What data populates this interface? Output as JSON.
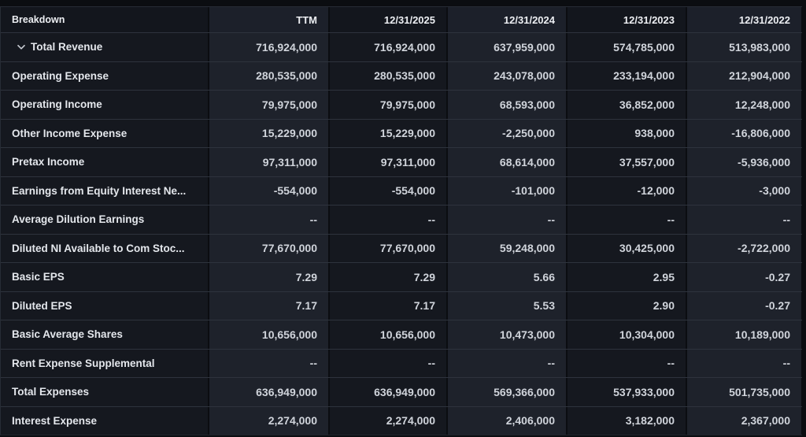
{
  "theme": {
    "page_bg": "#0b0d11",
    "column_dark_bg": "#15181f",
    "column_light_bg": "#1e222b",
    "row_separator": "#2e333d",
    "column_divider": "#0b0d11",
    "header_text": "#eceef2",
    "label_text": "#e4e7ec",
    "value_text": "#d0d4db"
  },
  "table": {
    "columns": [
      "Breakdown",
      "TTM",
      "12/31/2025",
      "12/31/2024",
      "12/31/2023",
      "12/31/2022"
    ],
    "rows": [
      {
        "label": "Total Revenue",
        "expandable": true,
        "values": [
          "716,924,000",
          "716,924,000",
          "637,959,000",
          "574,785,000",
          "513,983,000"
        ]
      },
      {
        "label": "Operating Expense",
        "expandable": false,
        "values": [
          "280,535,000",
          "280,535,000",
          "243,078,000",
          "233,194,000",
          "212,904,000"
        ]
      },
      {
        "label": "Operating Income",
        "expandable": false,
        "values": [
          "79,975,000",
          "79,975,000",
          "68,593,000",
          "36,852,000",
          "12,248,000"
        ]
      },
      {
        "label": "Other Income Expense",
        "expandable": false,
        "values": [
          "15,229,000",
          "15,229,000",
          "-2,250,000",
          "938,000",
          "-16,806,000"
        ]
      },
      {
        "label": "Pretax Income",
        "expandable": false,
        "values": [
          "97,311,000",
          "97,311,000",
          "68,614,000",
          "37,557,000",
          "-5,936,000"
        ]
      },
      {
        "label": "Earnings from Equity Interest Ne...",
        "expandable": false,
        "values": [
          "-554,000",
          "-554,000",
          "-101,000",
          "-12,000",
          "-3,000"
        ]
      },
      {
        "label": "Average Dilution Earnings",
        "expandable": false,
        "values": [
          "--",
          "--",
          "--",
          "--",
          "--"
        ]
      },
      {
        "label": "Diluted NI Available to Com Stoc...",
        "expandable": false,
        "values": [
          "77,670,000",
          "77,670,000",
          "59,248,000",
          "30,425,000",
          "-2,722,000"
        ]
      },
      {
        "label": "Basic EPS",
        "expandable": false,
        "values": [
          "7.29",
          "7.29",
          "5.66",
          "2.95",
          "-0.27"
        ]
      },
      {
        "label": "Diluted EPS",
        "expandable": false,
        "values": [
          "7.17",
          "7.17",
          "5.53",
          "2.90",
          "-0.27"
        ]
      },
      {
        "label": "Basic Average Shares",
        "expandable": false,
        "values": [
          "10,656,000",
          "10,656,000",
          "10,473,000",
          "10,304,000",
          "10,189,000"
        ]
      },
      {
        "label": "Rent Expense Supplemental",
        "expandable": false,
        "values": [
          "--",
          "--",
          "--",
          "--",
          "--"
        ]
      },
      {
        "label": "Total Expenses",
        "expandable": false,
        "values": [
          "636,949,000",
          "636,949,000",
          "569,366,000",
          "537,933,000",
          "501,735,000"
        ]
      },
      {
        "label": "Interest Expense",
        "expandable": false,
        "values": [
          "2,274,000",
          "2,274,000",
          "2,406,000",
          "3,182,000",
          "2,367,000"
        ]
      }
    ]
  }
}
